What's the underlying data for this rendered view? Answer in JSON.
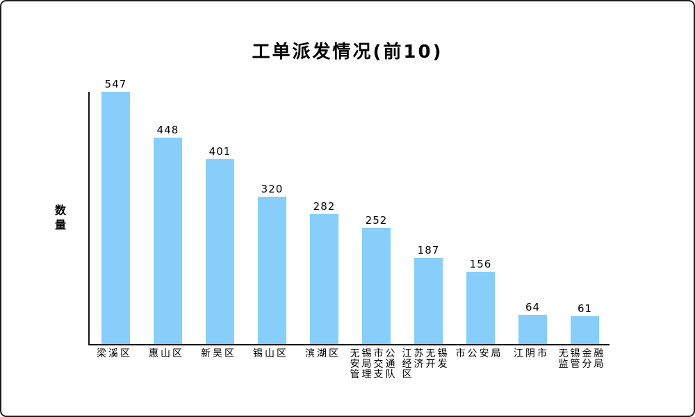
{
  "chart_data": {
    "type": "bar",
    "title": "工单派发情况(前10)",
    "xlabel": "",
    "ylabel": "数量",
    "categories": [
      "梁溪区",
      "惠山区",
      "新吴区",
      "锡山区",
      "滨湖区",
      "无锡市公安局交通管理支队",
      "江苏无锡经济开发区",
      "市公安局",
      "江阴市",
      "无锡金融监管分局"
    ],
    "values": [
      547,
      448,
      401,
      320,
      282,
      252,
      187,
      156,
      64,
      61
    ],
    "value_labels_shown": true,
    "ylim": [
      0,
      550
    ],
    "grid": false,
    "legend_position": "none",
    "bar_color": "#87CEFA",
    "axis_color": "#121212",
    "text_color": "#000000",
    "frame_border_color": "#1c1c1c",
    "background_color": "#ffffff"
  }
}
